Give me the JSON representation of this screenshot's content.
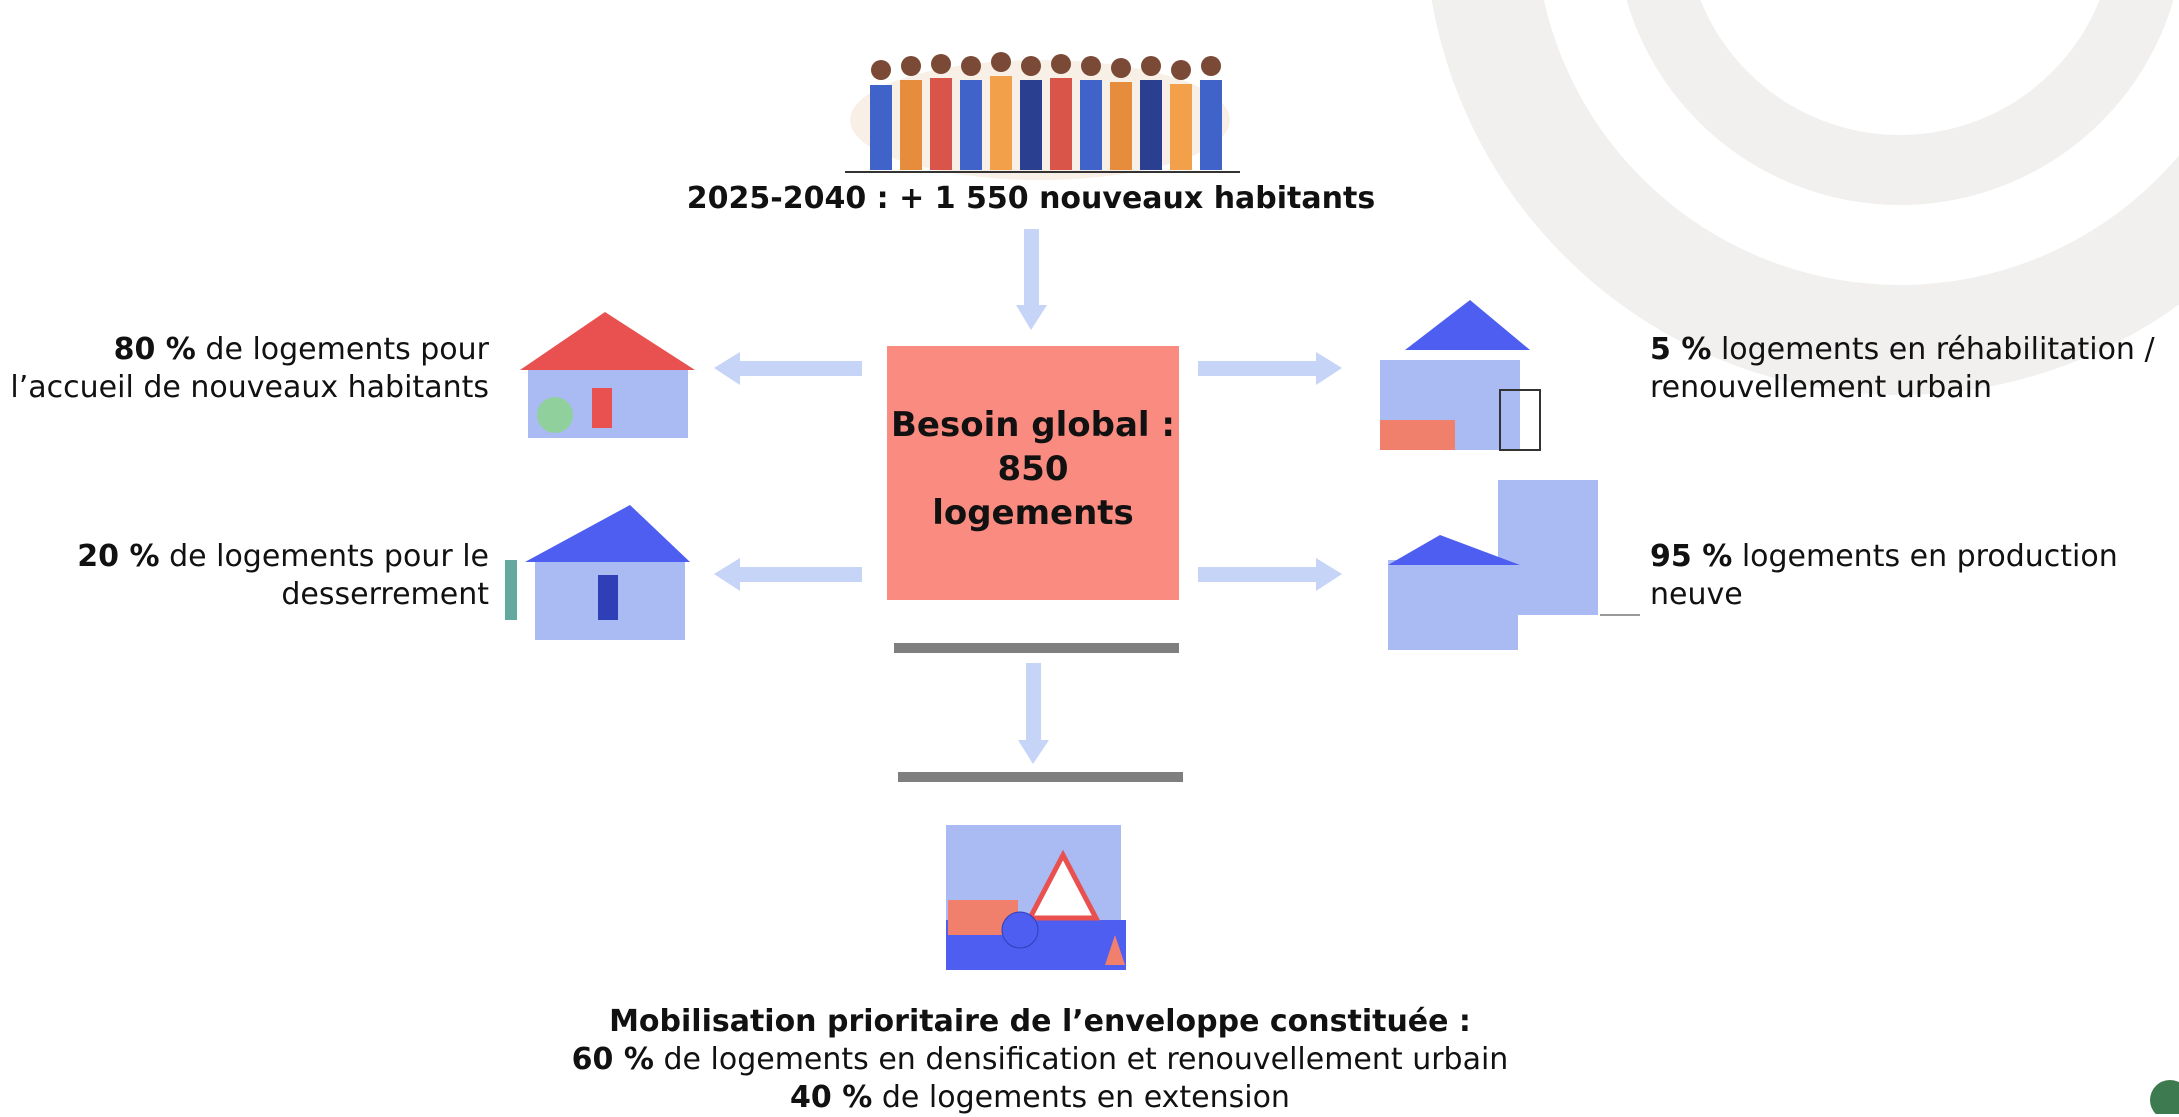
{
  "top": {
    "caption": "2025-2040 : + 1 550 nouveaux habitants"
  },
  "center": {
    "lines": [
      "Besoin global :",
      "850",
      "logements"
    ]
  },
  "left": [
    {
      "share": "80 %",
      "text": "de logements pour l’accueil de nouveaux habitants"
    },
    {
      "share": "20 %",
      "text": "de logements pour le desserrement"
    }
  ],
  "right": [
    {
      "share": "5 %",
      "text": "logements en réhabilitation / renouvellement urbain"
    },
    {
      "share": "95 %",
      "text": "logements en production neuve"
    }
  ],
  "bottom": {
    "title": "Mobilisation prioritaire de l’enveloppe constituée :",
    "lines": [
      {
        "share": "60 %",
        "text": "de logements en densification et renouvellement urbain"
      },
      {
        "share": "40 %",
        "text": "de logements en extension"
      }
    ]
  }
}
